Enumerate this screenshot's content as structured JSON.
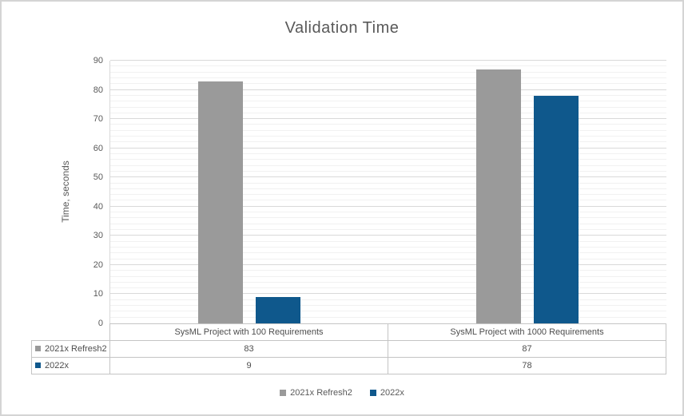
{
  "chart_data": {
    "type": "bar",
    "title": "Validation Time",
    "ylabel": "Time, seconds",
    "categories": [
      "SysML Project with 100 Requirements",
      "SysML Project with 1000 Requirements"
    ],
    "series": [
      {
        "name": "2021x Refresh2",
        "color": "#9a9a9a",
        "values": [
          83,
          87
        ]
      },
      {
        "name": "2022x",
        "color": "#0f588c",
        "values": [
          9,
          78
        ]
      }
    ],
    "ylim": [
      0,
      90
    ],
    "y_ticks": [
      0,
      10,
      20,
      30,
      40,
      50,
      60,
      70,
      80,
      90
    ],
    "y_major_step": 10,
    "y_minor_step": 2,
    "grid": "horizontal-major-and-minor",
    "legend_position": "bottom",
    "data_table_shown": true
  },
  "colors": {
    "title_text": "#595959",
    "axis_text": "#595959",
    "table_text": "#4d4d4d",
    "major_gridline": "#d9d9d9",
    "minor_gridline": "#f1f1f1",
    "table_border": "#c4c4c4",
    "frame_border": "#d4d4d4",
    "background": "#ffffff"
  }
}
